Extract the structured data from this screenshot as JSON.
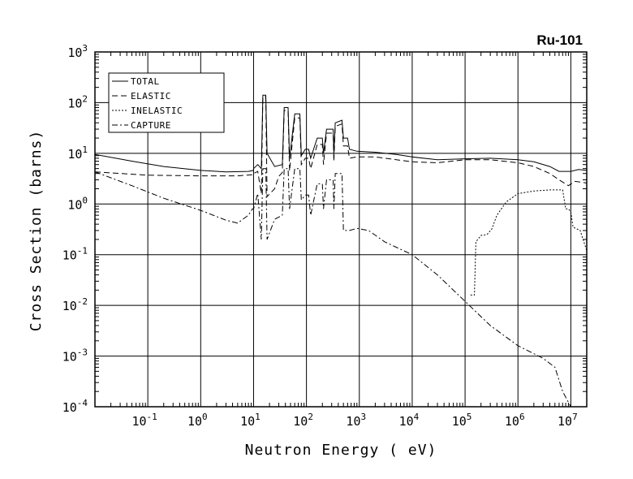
{
  "chart_data": {
    "type": "line",
    "title": "Ru-101",
    "xlabel": "Neutron Energy ( eV)",
    "ylabel": "Cross Section (barns)",
    "x_scale": "log",
    "y_scale": "log",
    "xlim": [
      0.01,
      20000000
    ],
    "ylim": [
      0.0001,
      1000
    ],
    "grid": true,
    "legend_position": "top-left",
    "x_ticks": [
      {
        "base": "10",
        "exp": "-1",
        "value": 0.1
      },
      {
        "base": "10",
        "exp": "0",
        "value": 1
      },
      {
        "base": "10",
        "exp": "1",
        "value": 10
      },
      {
        "base": "10",
        "exp": "2",
        "value": 100
      },
      {
        "base": "10",
        "exp": "3",
        "value": 1000
      },
      {
        "base": "10",
        "exp": "4",
        "value": 10000
      },
      {
        "base": "10",
        "exp": "5",
        "value": 100000
      },
      {
        "base": "10",
        "exp": "6",
        "value": 1000000
      },
      {
        "base": "10",
        "exp": "7",
        "value": 10000000
      }
    ],
    "y_ticks": [
      {
        "base": "10",
        "exp": "3",
        "value": 1000
      },
      {
        "base": "10",
        "exp": "2",
        "value": 100
      },
      {
        "base": "10",
        "exp": "1",
        "value": 10
      },
      {
        "base": "10",
        "exp": "0",
        "value": 1
      },
      {
        "base": "10",
        "exp": "-1",
        "value": 0.1
      },
      {
        "base": "10",
        "exp": "-2",
        "value": 0.01
      },
      {
        "base": "10",
        "exp": "-3",
        "value": 0.001
      },
      {
        "base": "10",
        "exp": "-4",
        "value": 0.0001
      }
    ],
    "series": [
      {
        "name": "TOTAL",
        "style": "solid",
        "step": false,
        "points": [
          [
            0.01,
            9.5
          ],
          [
            0.05,
            7.0
          ],
          [
            0.2,
            5.5
          ],
          [
            1,
            4.6
          ],
          [
            3,
            4.3
          ],
          [
            8,
            4.4
          ],
          [
            9.9,
            4.6
          ],
          [
            10,
            5
          ],
          [
            12,
            6
          ],
          [
            14,
            5
          ],
          [
            15,
            140
          ],
          [
            17,
            140
          ],
          [
            18,
            10
          ],
          [
            25,
            5.5
          ],
          [
            35,
            6
          ],
          [
            38,
            80
          ],
          [
            45,
            80
          ],
          [
            48,
            8
          ],
          [
            60,
            60
          ],
          [
            75,
            60
          ],
          [
            80,
            9
          ],
          [
            95,
            12
          ],
          [
            110,
            12
          ],
          [
            120,
            8
          ],
          [
            160,
            20
          ],
          [
            200,
            20
          ],
          [
            210,
            10
          ],
          [
            240,
            30
          ],
          [
            320,
            30
          ],
          [
            330,
            10
          ],
          [
            350,
            40
          ],
          [
            470,
            45
          ],
          [
            500,
            20
          ],
          [
            600,
            20
          ],
          [
            650,
            12
          ],
          [
            900,
            11
          ],
          [
            2000,
            10.5
          ],
          [
            5000,
            9.5
          ],
          [
            10000,
            8.5
          ],
          [
            30000,
            7.5
          ],
          [
            100000,
            7.8
          ],
          [
            300000,
            8
          ],
          [
            1000000,
            7.5
          ],
          [
            2000000,
            6.8
          ],
          [
            4000000,
            5.5
          ],
          [
            6000000,
            4.4
          ],
          [
            10000000,
            4.4
          ],
          [
            14000000,
            4.8
          ],
          [
            20000000,
            4.6
          ]
        ]
      },
      {
        "name": "ELASTIC",
        "style": "dashed",
        "step": false,
        "points": [
          [
            0.01,
            4.3
          ],
          [
            0.1,
            3.7
          ],
          [
            1,
            3.6
          ],
          [
            5,
            3.6
          ],
          [
            9.9,
            3.8
          ],
          [
            10,
            4
          ],
          [
            12,
            4.4
          ],
          [
            14,
            1.6
          ],
          [
            15,
            130
          ],
          [
            17,
            130
          ],
          [
            18,
            1.4
          ],
          [
            25,
            2
          ],
          [
            30,
            3.5
          ],
          [
            35,
            4.2
          ],
          [
            38,
            70
          ],
          [
            45,
            70
          ],
          [
            48,
            4.5
          ],
          [
            60,
            50
          ],
          [
            75,
            50
          ],
          [
            80,
            6
          ],
          [
            95,
            8
          ],
          [
            110,
            8
          ],
          [
            120,
            5
          ],
          [
            160,
            15
          ],
          [
            200,
            15
          ],
          [
            210,
            6
          ],
          [
            240,
            25
          ],
          [
            320,
            25
          ],
          [
            330,
            7
          ],
          [
            350,
            34
          ],
          [
            470,
            38
          ],
          [
            500,
            14
          ],
          [
            600,
            14
          ],
          [
            650,
            8
          ],
          [
            900,
            8.5
          ],
          [
            2000,
            8.5
          ],
          [
            5000,
            7.5
          ],
          [
            10000,
            6.8
          ],
          [
            30000,
            6.5
          ],
          [
            100000,
            7.5
          ],
          [
            300000,
            7.5
          ],
          [
            1000000,
            6.5
          ],
          [
            2000000,
            5.5
          ],
          [
            4000000,
            4
          ],
          [
            6000000,
            3
          ],
          [
            9000000,
            2.3
          ],
          [
            12000000,
            2.8
          ],
          [
            20000000,
            2.6
          ]
        ]
      },
      {
        "name": "INELASTIC",
        "style": "dotted",
        "step": false,
        "points": [
          [
            127000,
            0.016
          ],
          [
            150000,
            0.016
          ],
          [
            160000,
            0.18
          ],
          [
            200000,
            0.24
          ],
          [
            260000,
            0.25
          ],
          [
            320000,
            0.32
          ],
          [
            400000,
            0.6
          ],
          [
            600000,
            1.1
          ],
          [
            1000000,
            1.6
          ],
          [
            2000000,
            1.8
          ],
          [
            4000000,
            1.9
          ],
          [
            6500000,
            1.9
          ],
          [
            7000000,
            1.9
          ],
          [
            8000000,
            0.8
          ],
          [
            9000000,
            0.8
          ],
          [
            10000000,
            0.7
          ],
          [
            11000000,
            0.35
          ],
          [
            15000000,
            0.3
          ],
          [
            20000000,
            0.12
          ]
        ]
      },
      {
        "name": "CAPTURE",
        "style": "dashdot",
        "step": false,
        "points": [
          [
            0.01,
            4.3
          ],
          [
            0.05,
            2.3
          ],
          [
            0.2,
            1.3
          ],
          [
            1,
            0.75
          ],
          [
            3,
            0.48
          ],
          [
            5,
            0.42
          ],
          [
            8,
            0.6
          ],
          [
            9.5,
            0.8
          ],
          [
            10,
            0.8
          ],
          [
            12,
            1.6
          ],
          [
            14,
            0.2
          ],
          [
            15,
            5
          ],
          [
            17,
            5
          ],
          [
            18,
            0.2
          ],
          [
            25,
            0.5
          ],
          [
            35,
            0.6
          ],
          [
            38,
            5
          ],
          [
            45,
            5
          ],
          [
            48,
            0.8
          ],
          [
            60,
            5
          ],
          [
            75,
            5
          ],
          [
            80,
            1.2
          ],
          [
            95,
            1.5
          ],
          [
            110,
            1.5
          ],
          [
            120,
            0.6
          ],
          [
            160,
            2.5
          ],
          [
            200,
            2.5
          ],
          [
            210,
            0.8
          ],
          [
            240,
            3
          ],
          [
            320,
            3
          ],
          [
            330,
            0.8
          ],
          [
            350,
            4
          ],
          [
            470,
            4
          ],
          [
            500,
            0.3
          ],
          [
            600,
            0.3
          ],
          [
            650,
            0.3
          ],
          [
            900,
            0.33
          ],
          [
            1500,
            0.3
          ],
          [
            3000,
            0.18
          ],
          [
            10000,
            0.1
          ],
          [
            30000,
            0.04
          ],
          [
            100000,
            0.012
          ],
          [
            300000,
            0.004
          ],
          [
            1000000,
            0.0016
          ],
          [
            3000000,
            0.0009
          ],
          [
            5000000,
            0.0006
          ],
          [
            7000000,
            0.0002
          ],
          [
            10000000,
            0.0001
          ],
          [
            20000000,
            9e-05
          ]
        ]
      }
    ]
  }
}
